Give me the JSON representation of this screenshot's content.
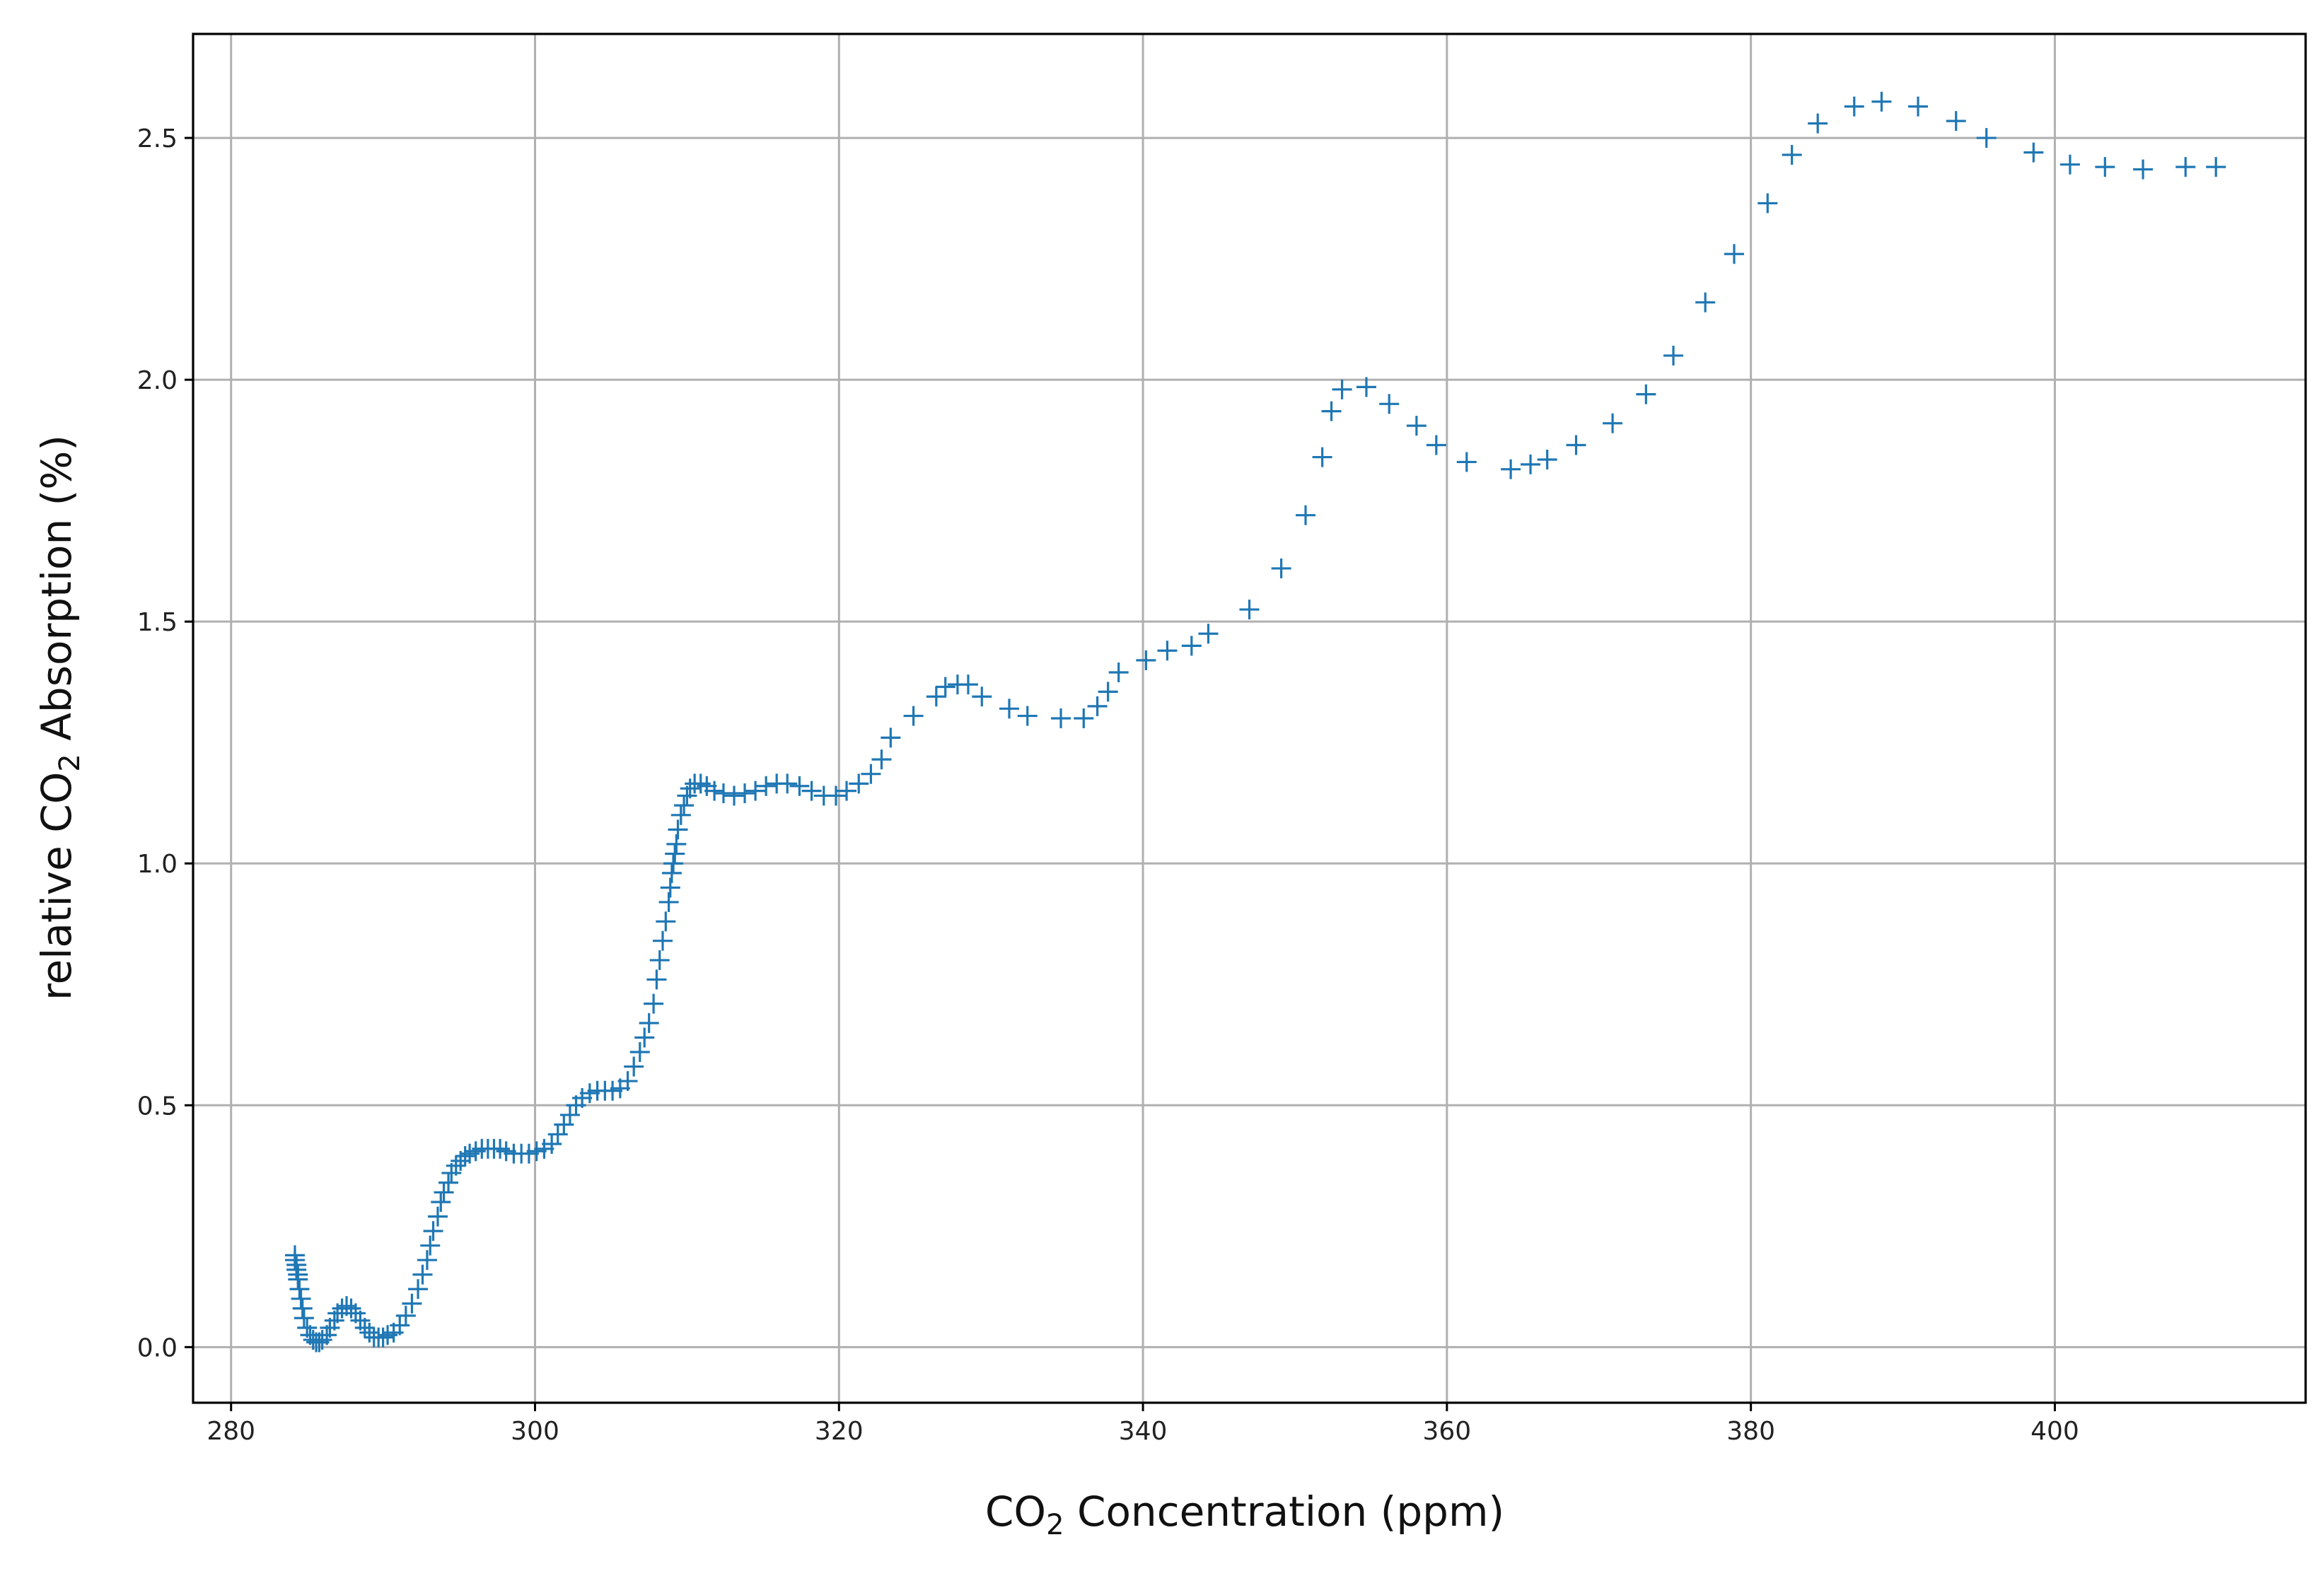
{
  "chart_data": {
    "type": "scatter",
    "marker": "+",
    "color": "#1f77b4",
    "grid": true,
    "xlabel": {
      "prefix": "CO",
      "subscript": "2",
      "suffix": " Concentration (ppm)"
    },
    "ylabel": {
      "prefix": "relative CO",
      "subscript": "2",
      "suffix": " Absorption (%)"
    },
    "xlim": [
      277.5,
      416.5
    ],
    "ylim": [
      -0.115,
      2.715
    ],
    "xticks": [
      280,
      300,
      320,
      340,
      360,
      380,
      400
    ],
    "xtick_labels": [
      "280",
      "300",
      "320",
      "340",
      "360",
      "380",
      "400"
    ],
    "yticks": [
      0.0,
      0.5,
      1.0,
      1.5,
      2.0,
      2.5
    ],
    "ytick_labels": [
      "0.0",
      "0.5",
      "1.0",
      "1.5",
      "2.0",
      "2.5"
    ],
    "series": [
      {
        "name": "relative CO2 absorption",
        "x": [
          284.2,
          284.2,
          284.3,
          284.3,
          284.4,
          284.4,
          284.5,
          284.6,
          284.7,
          284.8,
          285.0,
          285.2,
          285.4,
          285.6,
          285.8,
          286.0,
          286.3,
          286.5,
          286.8,
          287.0,
          287.3,
          287.6,
          287.9,
          288.2,
          288.5,
          288.8,
          289.1,
          289.4,
          289.7,
          290.0,
          290.3,
          290.7,
          291.1,
          291.5,
          291.9,
          292.3,
          292.6,
          292.9,
          293.1,
          293.3,
          293.6,
          293.8,
          294.0,
          294.3,
          294.5,
          294.8,
          295.1,
          295.4,
          295.7,
          296.1,
          296.5,
          296.9,
          297.3,
          297.7,
          298.1,
          298.6,
          299.1,
          299.6,
          300.1,
          300.6,
          301.1,
          301.5,
          301.9,
          302.3,
          302.7,
          303.1,
          303.6,
          304.1,
          304.6,
          305.1,
          305.6,
          306.1,
          306.5,
          306.9,
          307.2,
          307.5,
          307.8,
          308.0,
          308.2,
          308.4,
          308.6,
          308.8,
          308.9,
          309.0,
          309.1,
          309.2,
          309.3,
          309.4,
          309.6,
          309.8,
          310.0,
          310.2,
          310.5,
          310.9,
          311.3,
          311.8,
          312.4,
          313.1,
          313.8,
          314.5,
          315.2,
          315.9,
          316.6,
          317.4,
          318.2,
          319.0,
          319.8,
          320.5,
          321.3,
          322.1,
          322.8,
          323.4,
          324.9,
          326.4,
          327.0,
          327.8,
          328.5,
          329.4,
          331.2,
          332.4,
          334.6,
          336.1,
          337.0,
          337.7,
          338.4,
          340.2,
          341.6,
          343.2,
          344.3,
          347.0,
          349.1,
          350.7,
          351.8,
          352.4,
          353.1,
          354.7,
          356.2,
          358.0,
          359.3,
          361.3,
          364.2,
          365.5,
          366.6,
          368.5,
          370.9,
          373.1,
          374.9,
          377.0,
          378.9,
          381.1,
          382.7,
          384.4,
          386.8,
          388.6,
          391.0,
          393.5,
          395.5,
          398.6,
          401.0,
          403.3,
          405.8,
          408.6,
          410.6
        ],
        "y": [
          0.19,
          0.18,
          0.17,
          0.16,
          0.15,
          0.14,
          0.12,
          0.1,
          0.08,
          0.06,
          0.04,
          0.025,
          0.015,
          0.01,
          0.01,
          0.015,
          0.025,
          0.04,
          0.055,
          0.07,
          0.08,
          0.085,
          0.08,
          0.07,
          0.055,
          0.04,
          0.03,
          0.02,
          0.02,
          0.02,
          0.025,
          0.03,
          0.045,
          0.065,
          0.09,
          0.12,
          0.15,
          0.18,
          0.21,
          0.24,
          0.27,
          0.3,
          0.32,
          0.34,
          0.36,
          0.375,
          0.385,
          0.395,
          0.4,
          0.405,
          0.41,
          0.41,
          0.41,
          0.41,
          0.405,
          0.4,
          0.4,
          0.4,
          0.405,
          0.41,
          0.42,
          0.44,
          0.46,
          0.48,
          0.5,
          0.515,
          0.525,
          0.53,
          0.53,
          0.53,
          0.535,
          0.55,
          0.58,
          0.61,
          0.64,
          0.67,
          0.71,
          0.76,
          0.8,
          0.84,
          0.88,
          0.92,
          0.95,
          0.98,
          1.0,
          1.02,
          1.04,
          1.07,
          1.1,
          1.12,
          1.14,
          1.155,
          1.165,
          1.165,
          1.16,
          1.15,
          1.145,
          1.14,
          1.145,
          1.15,
          1.16,
          1.165,
          1.165,
          1.16,
          1.15,
          1.14,
          1.14,
          1.15,
          1.165,
          1.185,
          1.215,
          1.26,
          1.305,
          1.345,
          1.365,
          1.37,
          1.37,
          1.345,
          1.32,
          1.305,
          1.3,
          1.3,
          1.325,
          1.355,
          1.395,
          1.42,
          1.44,
          1.45,
          1.475,
          1.525,
          1.61,
          1.72,
          1.84,
          1.935,
          1.98,
          1.985,
          1.95,
          1.905,
          1.865,
          1.83,
          1.815,
          1.825,
          1.835,
          1.865,
          1.91,
          1.97,
          2.05,
          2.16,
          2.26,
          2.365,
          2.465,
          2.53,
          2.565,
          2.575,
          2.565,
          2.535,
          2.5,
          2.47,
          2.445,
          2.44,
          2.435,
          2.44,
          2.44
        ]
      }
    ]
  }
}
